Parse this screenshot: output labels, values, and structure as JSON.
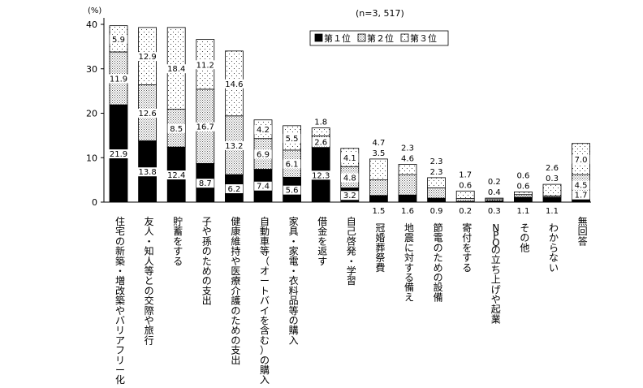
{
  "chart_data": {
    "type": "bar",
    "stacked": true,
    "unit_label": "(%)",
    "sample_note": "(n=3, 517)",
    "ylim": [
      0,
      40
    ],
    "yticks": [
      0,
      10,
      20,
      30,
      40
    ],
    "legend_position": "top-right",
    "categories": [
      "住宅の新築・増改築やバリアフリー化",
      "友人・知人等との交際や旅行",
      "貯蓄をする",
      "子や孫のための支出",
      "健康維持や医療介護のための支出",
      "自動車等（オートバイを含む）の購入",
      "家具・家電・衣料品等の購入",
      "借金を返す",
      "自己啓発・学習",
      "冠婚葬祭費",
      "地震に対する備え",
      "節電のための設備",
      "寄付をする",
      "NPOの立ち上げや起業",
      "その他",
      "わからない",
      "無回答"
    ],
    "series": [
      {
        "name": "第１位",
        "pattern": "solid",
        "values": [
          21.9,
          13.8,
          12.4,
          8.7,
          6.2,
          7.4,
          5.6,
          12.3,
          3.2,
          1.5,
          1.6,
          0.9,
          0.2,
          0.3,
          1.1,
          1.1,
          1.7
        ]
      },
      {
        "name": "第２位",
        "pattern": "dense-dots",
        "values": [
          11.9,
          12.6,
          8.5,
          16.7,
          13.2,
          6.9,
          6.1,
          2.6,
          4.8,
          3.5,
          4.6,
          2.3,
          0.6,
          0.4,
          0.6,
          0.3,
          4.5
        ]
      },
      {
        "name": "第３位",
        "pattern": "sparse-dots",
        "values": [
          5.9,
          12.9,
          18.4,
          11.2,
          14.6,
          4.2,
          5.5,
          1.8,
          4.1,
          4.7,
          2.3,
          2.3,
          1.7,
          0.2,
          0.6,
          2.6,
          7.0
        ]
      }
    ]
  }
}
